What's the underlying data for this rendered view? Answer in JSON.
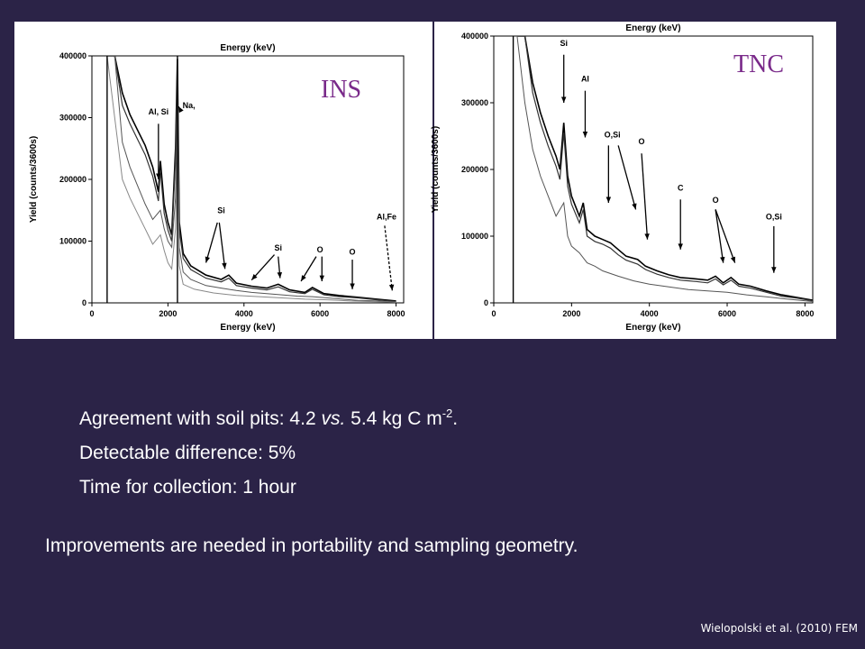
{
  "chart_data": [
    {
      "type": "line",
      "title": "INS",
      "xlabel": "Energy (keV)",
      "xlabel_top": "Energy (keV)",
      "ylabel": "Yield (counts/3600s)",
      "xlim": [
        0,
        8200
      ],
      "ylim": [
        0,
        400000
      ],
      "xticks": [
        "0",
        "2000",
        "4000",
        "6000",
        "8000"
      ],
      "yticks": [
        "0",
        "100000",
        "200000",
        "300000",
        "400000"
      ],
      "series": [
        {
          "x": [
            400,
            600,
            800,
            1000,
            1200,
            1400,
            1600,
            1750,
            1800,
            1900,
            2000,
            2100,
            2200,
            2250,
            2300,
            2400,
            2600,
            3000,
            3400,
            3600,
            3800,
            4200,
            4600,
            4900,
            5200,
            5600,
            5800,
            6100,
            6500,
            7000,
            7500,
            8000
          ],
          "values": [
            400000,
            400000,
            340000,
            305000,
            280000,
            255000,
            220000,
            180000,
            230000,
            160000,
            130000,
            110000,
            250000,
            395000,
            130000,
            80000,
            60000,
            45000,
            38000,
            45000,
            32000,
            27000,
            24000,
            30000,
            21000,
            17000,
            25000,
            15000,
            12000,
            9000,
            6000,
            3000
          ]
        },
        {
          "x": [
            400,
            600,
            800,
            1000,
            1200,
            1400,
            1600,
            1750,
            1800,
            1900,
            2000,
            2100,
            2200,
            2250,
            2300,
            2400,
            2600,
            3000,
            3400,
            3600,
            3800,
            4200,
            4600,
            4900,
            5200,
            5600,
            5800,
            6100,
            6500,
            7000,
            7500,
            8000
          ],
          "values": [
            400000,
            400000,
            320000,
            290000,
            265000,
            240000,
            205000,
            165000,
            215000,
            145000,
            118000,
            100000,
            235000,
            380000,
            118000,
            72000,
            54000,
            40000,
            34000,
            40000,
            28000,
            24000,
            21000,
            26000,
            18000,
            15000,
            22000,
            13000,
            10000,
            8000,
            5000,
            2000
          ]
        },
        {
          "x": [
            400,
            600,
            800,
            1000,
            1200,
            1400,
            1600,
            1800,
            1900,
            2000,
            2100,
            2200,
            2250,
            2300,
            2400,
            2600,
            3000,
            3400,
            3800,
            4200,
            4600,
            5000,
            5400,
            5800,
            6200,
            6600,
            7000,
            7500,
            8000
          ],
          "values": [
            400000,
            400000,
            260000,
            220000,
            190000,
            160000,
            135000,
            150000,
            120000,
            100000,
            90000,
            170000,
            340000,
            90000,
            50000,
            38000,
            28000,
            24000,
            20000,
            17000,
            15000,
            13000,
            11000,
            10000,
            8000,
            6000,
            4000,
            3000,
            1000
          ]
        },
        {
          "x": [
            400,
            600,
            800,
            1000,
            1200,
            1400,
            1600,
            1800,
            1900,
            2000,
            2100,
            2200,
            2250,
            2300,
            2400,
            2700,
            3200,
            3800,
            4400,
            5000,
            5600,
            6200,
            6800,
            7400,
            8000
          ],
          "values": [
            400000,
            300000,
            200000,
            170000,
            145000,
            120000,
            95000,
            110000,
            85000,
            65000,
            55000,
            120000,
            250000,
            60000,
            30000,
            22000,
            16000,
            12000,
            10000,
            8000,
            6000,
            5000,
            3000,
            2000,
            1000
          ]
        }
      ],
      "annotations": [
        "Al, Si",
        "Na,",
        "Si",
        "Si",
        "O",
        "O",
        "Al,Fe"
      ]
    },
    {
      "type": "line",
      "title": "TNC",
      "xlabel": "Energy (keV)",
      "xlabel_top": "Energy (keV)",
      "ylabel": "Yield (counts/3600s)",
      "xlim": [
        0,
        8200
      ],
      "ylim": [
        0,
        400000
      ],
      "xticks": [
        "0",
        "2000",
        "4000",
        "6000",
        "8000"
      ],
      "yticks": [
        "0",
        "100000",
        "200000",
        "300000",
        "400000"
      ],
      "series": [
        {
          "x": [
            600,
            800,
            1000,
            1200,
            1400,
            1600,
            1700,
            1800,
            1900,
            2000,
            2200,
            2300,
            2400,
            2600,
            2800,
            3000,
            3200,
            3400,
            3700,
            3900,
            4200,
            4500,
            4800,
            5200,
            5500,
            5700,
            5900,
            6100,
            6300,
            6600,
            7000,
            7400,
            7800,
            8200
          ],
          "values": [
            400000,
            400000,
            330000,
            285000,
            250000,
            220000,
            200000,
            270000,
            190000,
            160000,
            130000,
            150000,
            110000,
            100000,
            95000,
            90000,
            80000,
            70000,
            65000,
            55000,
            48000,
            42000,
            38000,
            36000,
            34000,
            40000,
            30000,
            38000,
            28000,
            25000,
            18000,
            12000,
            8000,
            4000
          ]
        },
        {
          "x": [
            600,
            800,
            1000,
            1200,
            1400,
            1600,
            1700,
            1800,
            1900,
            2000,
            2200,
            2300,
            2400,
            2600,
            2800,
            3000,
            3200,
            3400,
            3700,
            3900,
            4200,
            4500,
            4800,
            5200,
            5500,
            5700,
            5900,
            6100,
            6300,
            6600,
            7000,
            7400,
            7800,
            8200
          ],
          "values": [
            400000,
            400000,
            315000,
            270000,
            235000,
            205000,
            185000,
            255000,
            175000,
            148000,
            120000,
            140000,
            100000,
            92000,
            88000,
            82000,
            72000,
            64000,
            58000,
            50000,
            43000,
            38000,
            34000,
            32000,
            30000,
            36000,
            27000,
            34000,
            25000,
            22000,
            16000,
            10000,
            7000,
            3000
          ]
        },
        {
          "x": [
            600,
            800,
            1000,
            1200,
            1400,
            1600,
            1800,
            1900,
            2000,
            2200,
            2400,
            2600,
            2800,
            3200,
            3600,
            4000,
            4500,
            5000,
            5500,
            6000,
            6500,
            7000,
            7500,
            8200
          ],
          "values": [
            400000,
            300000,
            230000,
            190000,
            160000,
            130000,
            150000,
            100000,
            85000,
            75000,
            60000,
            55000,
            48000,
            40000,
            33000,
            28000,
            24000,
            20000,
            18000,
            16000,
            12000,
            9000,
            6000,
            2000
          ]
        }
      ],
      "annotations": [
        "Si",
        "Al",
        "O,Si",
        "O",
        "C",
        "O",
        "O,Si"
      ]
    }
  ],
  "panels": {
    "ins_label": "INS",
    "tnc_label": "TNC"
  },
  "bullets": {
    "agreement_prefix": "Agreement with soil pits: 4.2 ",
    "agreement_vs": "vs.",
    "agreement_suffix": " 5.4 kg C m",
    "agreement_exp": "-2",
    "agreement_end": ".",
    "detectable": "Detectable difference:  5%",
    "time": "Time for collection:  1 hour"
  },
  "improvements": "Improvements are needed in portability and sampling geometry.",
  "citation": "Wielopolski et al. (2010) FEM",
  "colors": {
    "background": "#2b2347",
    "label": "#7a2a8a",
    "text": "#ffffff"
  }
}
